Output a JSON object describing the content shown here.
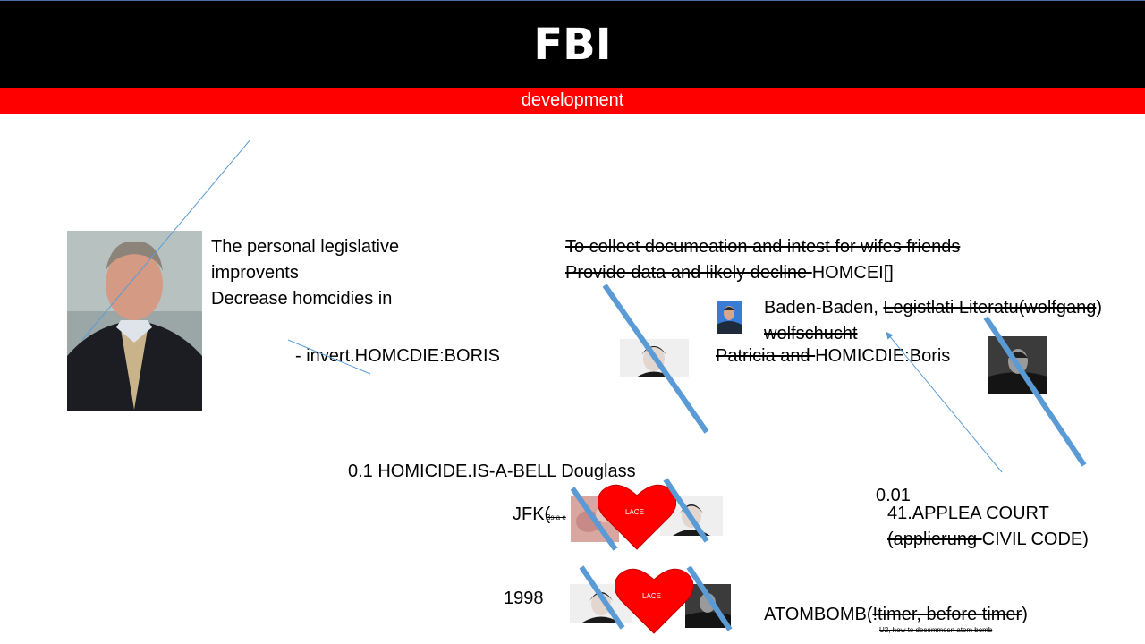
{
  "header": {
    "title": "FBI",
    "subtitle": "development"
  },
  "left": {
    "line1": "The personal legislative",
    "line2": " improvents",
    "line3": "Decrease homcidies in",
    "invert": "- invert.HOMCDIE:BORIS"
  },
  "right": {
    "line1": "To collect documeation and intest for wifes friends",
    "line2_struck": "Provide data and likely decline ",
    "line2_rest": "HOMCEI[]",
    "baden": "Baden-Baden, ",
    "baden_struck": "Legistlati Literatu(wolfgang",
    "baden_close": ")",
    "wolfschucht": "wolfschucht",
    "patricia_struck": "Patricia and ",
    "patricia_rest": "HOMICDIE:Boris"
  },
  "middle": {
    "homicide_bell": "0.1 HOMICIDE.IS-A-BELL Douglass",
    "jfk": "JFK(",
    "jfk_tiny": "3s a e",
    "year": "1998",
    "heart_label": "LACE"
  },
  "bottom_right": {
    "value": "0.01",
    "court": "41.APPLEA COURT",
    "court2_struck": "(applierung ",
    "court2_rest": "CIVIL CODE)",
    "atombomb": "ATOMBOMB(",
    "atombomb_struck": "!timer, before timer",
    "atombomb_close": ")",
    "atombomb_note": "U2, how to decommosn atom bomb"
  },
  "colors": {
    "header_bg": "#000000",
    "subbar_bg": "#ff0000",
    "heart": "#ff0000",
    "slash": "#5b9bd5"
  }
}
